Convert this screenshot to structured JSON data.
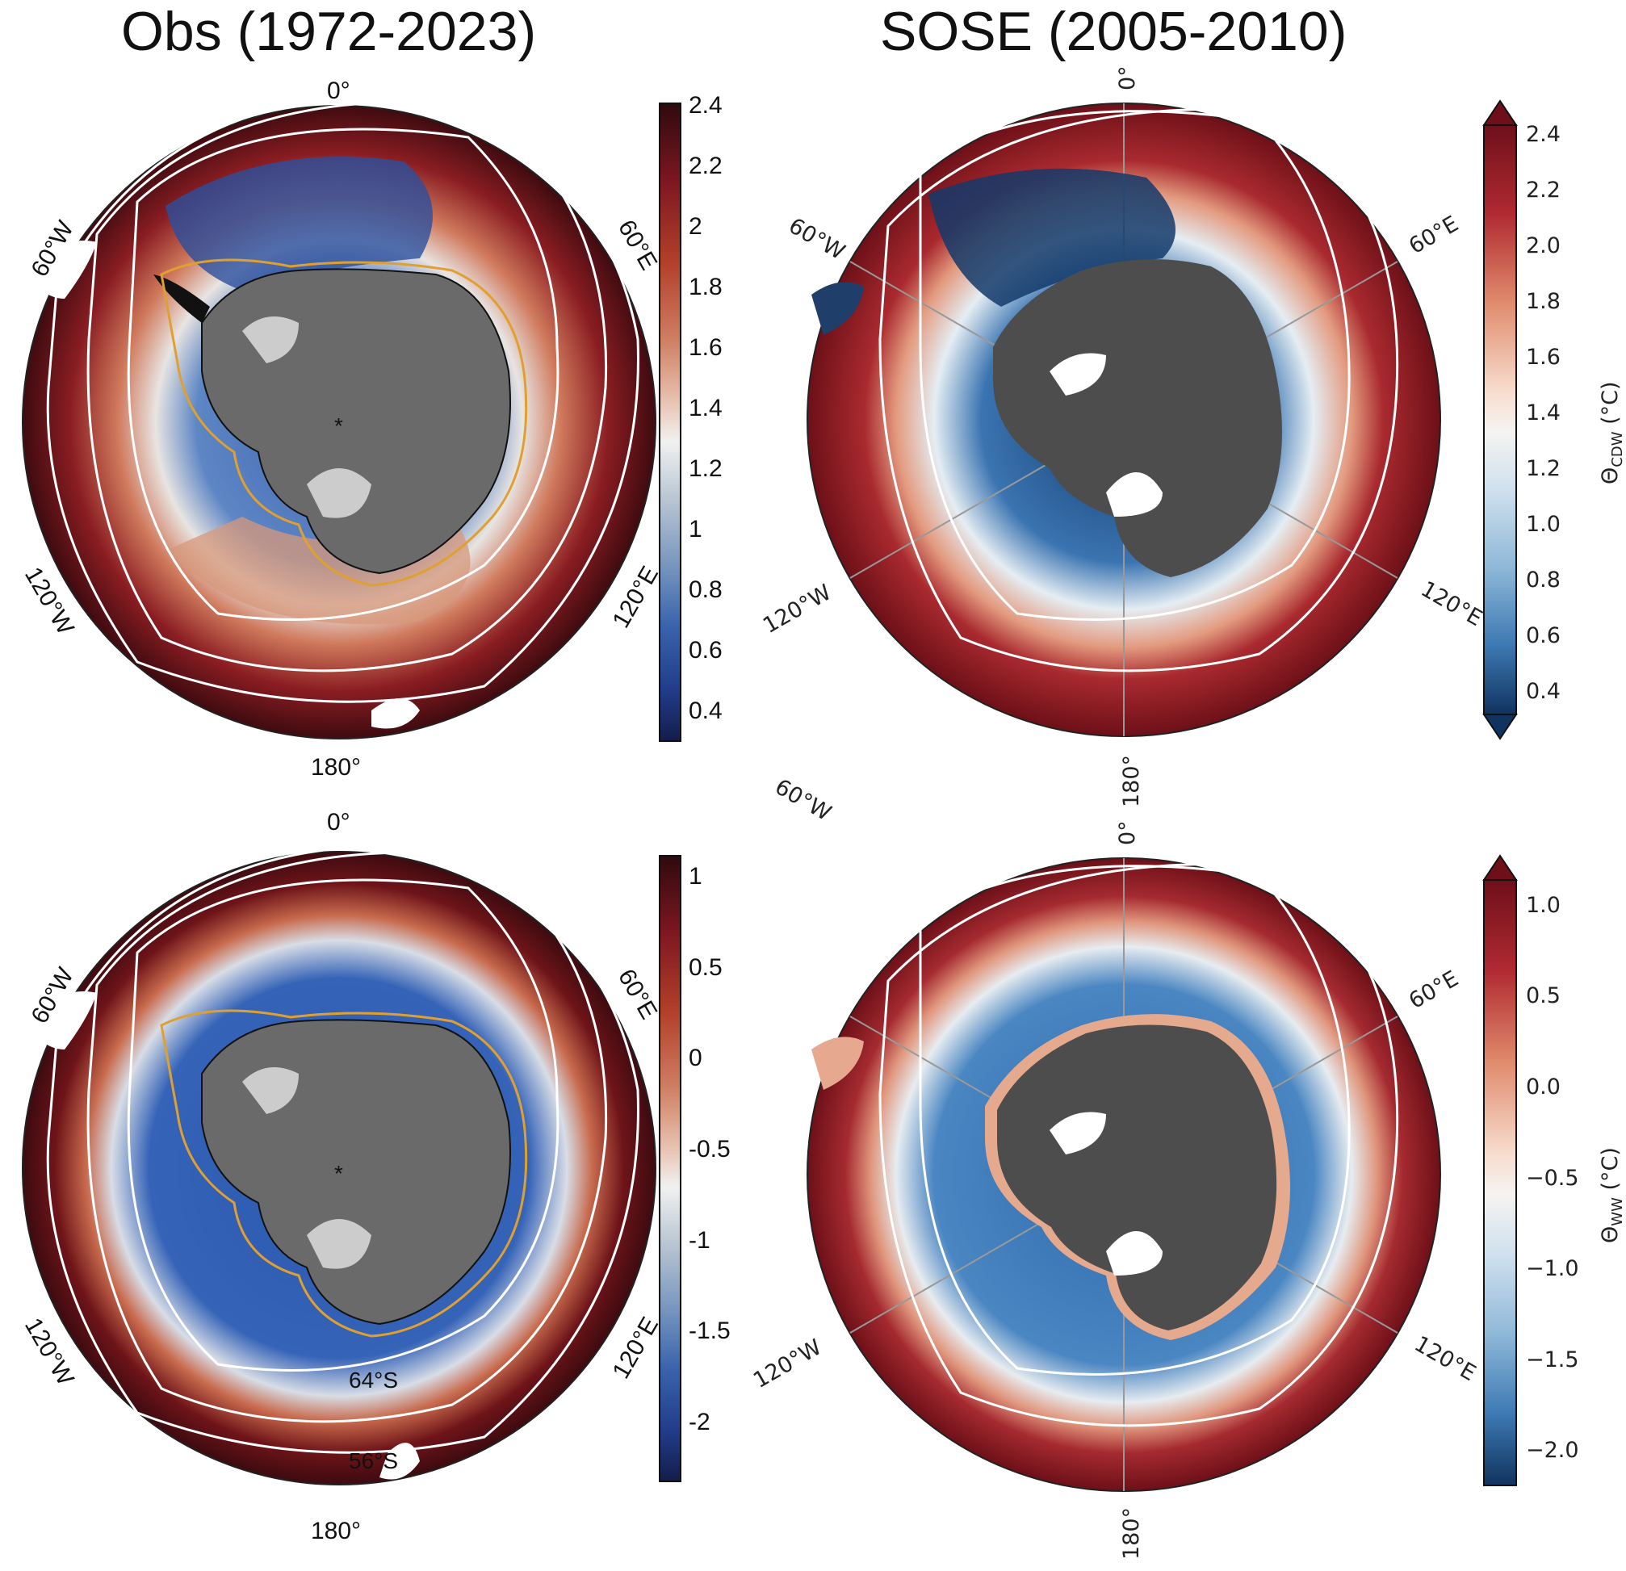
{
  "titles": {
    "left": "Obs (1972-2023)",
    "right": "SOSE (2005-2010)"
  },
  "panels": {
    "obs_cdw": {
      "lon_labels": {
        "zero": "0°",
        "w60": "60°W",
        "e60": "60°E",
        "w120": "120°W",
        "e120": "120°E",
        "s180": "180°"
      },
      "marker": "*",
      "colorbar": {
        "ticks": [
          "2.4",
          "2.2",
          "2",
          "1.8",
          "1.6",
          "1.4",
          "1.2",
          "1",
          "0.8",
          "0.6",
          "0.4"
        ]
      }
    },
    "sose_cdw": {
      "lon_labels": {
        "zero": "0°",
        "w60": "60°W",
        "e60": "60°E",
        "w120": "120°W",
        "e120": "120°E",
        "s180": "180°"
      },
      "colorbar": {
        "ticks": [
          "2.4",
          "2.2",
          "2.0",
          "1.8",
          "1.6",
          "1.4",
          "1.2",
          "1.0",
          "0.8",
          "0.6",
          "0.4"
        ],
        "label_main": "Θ",
        "label_sub": "CDW",
        "label_unit": " (°C)"
      }
    },
    "obs_ww": {
      "lon_labels": {
        "zero": "0°",
        "w60": "60°W",
        "e60": "60°E",
        "w120": "120°W",
        "e120": "120°E",
        "s180": "180°"
      },
      "lat_labels": {
        "s64": "64°S",
        "s56": "56°S"
      },
      "marker": "*",
      "colorbar": {
        "ticks": [
          "1",
          "0.5",
          "0",
          "-0.5",
          "-1",
          "-1.5",
          "-2"
        ]
      }
    },
    "sose_ww": {
      "lon_labels": {
        "zero": "0°",
        "w60": "60°W",
        "e60": "60°E",
        "w120": "120°W",
        "e120": "120°E",
        "s180": "180°"
      },
      "colorbar": {
        "ticks": [
          "1.0",
          "0.5",
          "0.0",
          "−0.5",
          "−1.0",
          "−1.5",
          "−2.0"
        ],
        "label_main": "Θ",
        "label_sub": "WW",
        "label_unit": " (°C)"
      }
    }
  },
  "colors": {
    "warm_max": "#4a0d12",
    "warm": "#a8232d",
    "orange": "#c9694e",
    "light": "#ede7e3",
    "cool": "#5a89c0",
    "deep_blue": "#1c3f7a",
    "land": "#555555",
    "front": "#ffffff",
    "shelf_contour": "#e0a030"
  }
}
